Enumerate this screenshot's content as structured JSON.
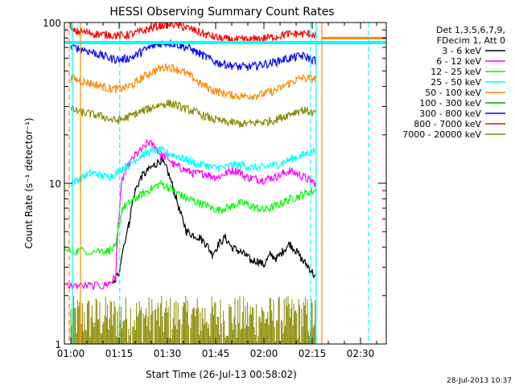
{
  "chart_data": {
    "type": "line",
    "title": "HESSI Observing Summary Count Rates",
    "xlabel": "Start Time (26-Jul-13 00:58:02)",
    "ylabel": "Count Rate (s⁻¹ detector⁻¹)",
    "ylog": true,
    "ylim": [
      1,
      100
    ],
    "xlim_minutes": [
      58,
      158
    ],
    "x_ticks": [
      {
        "m": 60,
        "label": "01:00"
      },
      {
        "m": 75,
        "label": "01:15"
      },
      {
        "m": 90,
        "label": "01:30"
      },
      {
        "m": 105,
        "label": "01:45"
      },
      {
        "m": 120,
        "label": "02:00"
      },
      {
        "m": 135,
        "label": "02:15"
      },
      {
        "m": 150,
        "label": "02:30"
      }
    ],
    "y_ticks": [
      {
        "v": 1,
        "label": "1"
      },
      {
        "v": 10,
        "label": "10"
      },
      {
        "v": 100,
        "label": "100"
      }
    ],
    "legend_header": [
      "Det 1,3,5,6,7,9,",
      "FDecim 1, Att 0"
    ],
    "series": [
      {
        "name": "3 - 6 keV",
        "color": "#000000",
        "x": [
          73,
          75,
          78,
          80,
          82,
          84,
          86,
          88,
          90,
          92,
          94,
          96,
          98,
          100,
          102,
          104,
          106,
          108,
          110,
          112,
          114,
          116,
          118,
          120,
          122,
          124,
          126,
          128,
          130,
          132,
          134,
          136
        ],
        "y": [
          2.3,
          2.8,
          5.5,
          9,
          11,
          12,
          13,
          14,
          12,
          9,
          6.5,
          5,
          4.8,
          4.6,
          4.2,
          3.6,
          4.2,
          4.6,
          4,
          3.8,
          3.6,
          3.3,
          3.3,
          3.1,
          3.6,
          3.4,
          3.8,
          4.2,
          3.8,
          3.3,
          3.0,
          2.6
        ]
      },
      {
        "name": "6 - 12 keV",
        "color": "#ff00ff",
        "x": [
          58,
          62,
          66,
          70,
          72,
          74,
          76,
          78,
          80,
          82,
          84,
          86,
          88,
          90,
          92,
          94,
          96,
          98,
          100,
          102,
          104,
          106,
          108,
          110,
          112,
          114,
          116,
          118,
          120,
          122,
          124,
          126,
          128,
          130,
          132,
          134,
          136
        ],
        "y": [
          2.3,
          2.3,
          2.3,
          2.3,
          2.4,
          2.6,
          10.5,
          13,
          15,
          16,
          18,
          17,
          15,
          14.5,
          13,
          12.5,
          12,
          11.5,
          11.5,
          11.5,
          11,
          11,
          11.5,
          12,
          12,
          11,
          10.8,
          10.6,
          10.5,
          10.8,
          11,
          11.5,
          12,
          11.5,
          11,
          10.5,
          10
        ]
      },
      {
        "name": "12 - 25 keV",
        "color": "#00ff00",
        "x": [
          58,
          62,
          66,
          70,
          72,
          74,
          76,
          78,
          80,
          82,
          84,
          86,
          88,
          90,
          92,
          94,
          96,
          98,
          100,
          102,
          104,
          106,
          108,
          110,
          112,
          114,
          116,
          118,
          120,
          122,
          124,
          126,
          128,
          130,
          132,
          134,
          136
        ],
        "y": [
          3.8,
          3.8,
          3.8,
          3.8,
          3.8,
          4.0,
          7,
          7.5,
          8,
          8.5,
          9,
          9.5,
          10,
          9.5,
          9,
          8.5,
          8,
          7.8,
          7.5,
          7.3,
          7,
          6.8,
          7,
          7.2,
          7.5,
          7.5,
          7.2,
          7,
          6.8,
          7,
          7.3,
          7.6,
          8,
          8.2,
          8.5,
          8.8,
          9
        ]
      },
      {
        "name": "25 - 50 keV",
        "color": "#00ffff",
        "x": [
          60,
          62,
          64,
          66,
          68,
          70,
          72,
          74,
          76,
          78,
          80,
          82,
          84,
          86,
          88,
          90,
          92,
          94,
          96,
          98,
          100,
          102,
          104,
          106,
          108,
          110,
          112,
          114,
          116,
          118,
          120,
          122,
          124,
          126,
          128,
          130,
          132,
          134,
          136
        ],
        "y": [
          10,
          10.5,
          11,
          11.5,
          11.5,
          11,
          11,
          11.5,
          12.5,
          13,
          14,
          15,
          15.5,
          16,
          16,
          15.5,
          15,
          14.5,
          14,
          13.5,
          13,
          13,
          12.5,
          12.5,
          12.5,
          13,
          13,
          13,
          12.5,
          12.5,
          12.5,
          13,
          13,
          13.5,
          14,
          14.5,
          15,
          15.5,
          16
        ]
      },
      {
        "name": "50 - 100 keV",
        "color": "#ff8800",
        "x": [
          60,
          62,
          64,
          66,
          68,
          70,
          72,
          74,
          76,
          78,
          80,
          82,
          84,
          86,
          88,
          90,
          92,
          94,
          96,
          98,
          100,
          102,
          104,
          106,
          108,
          110,
          112,
          114,
          116,
          118,
          120,
          122,
          124,
          126,
          128,
          130,
          132,
          134,
          136
        ],
        "y": [
          45,
          44,
          43,
          42,
          41,
          40,
          39,
          38.5,
          39,
          40,
          42,
          45,
          48,
          50,
          52,
          53,
          52,
          50,
          48,
          45,
          42,
          40,
          38,
          37,
          36,
          35.5,
          35,
          35,
          35,
          35.5,
          36,
          37,
          38,
          40,
          42,
          44,
          45,
          45,
          45
        ]
      },
      {
        "name": "100 - 300 keV",
        "color": "#00aa00",
        "x": [],
        "y": []
      },
      {
        "name": "300 - 800 keV",
        "color": "#0000ff",
        "x": [
          60,
          62,
          64,
          66,
          68,
          70,
          72,
          74,
          76,
          78,
          80,
          82,
          84,
          86,
          88,
          90,
          92,
          94,
          96,
          98,
          100,
          102,
          104,
          106,
          108,
          110,
          112,
          114,
          116,
          118,
          120,
          122,
          124,
          126,
          128,
          130,
          132,
          134,
          136
        ],
        "y": [
          70,
          69,
          68,
          66,
          64,
          62,
          60,
          59,
          59,
          60,
          62,
          66,
          69,
          72,
          74,
          75,
          74,
          72,
          70,
          67,
          64,
          61,
          58,
          56,
          55,
          54,
          53,
          53,
          53,
          54,
          55,
          56,
          57,
          59,
          60,
          61,
          62,
          60,
          58
        ]
      },
      {
        "name": "800 - 7000 keV",
        "color": "#ff0000",
        "x": [
          60,
          62,
          64,
          66,
          68,
          70,
          72,
          74,
          76,
          78,
          80,
          82,
          84,
          86,
          88,
          90,
          92,
          94,
          96,
          98,
          100,
          102,
          104,
          106,
          108,
          110,
          112,
          114,
          116,
          118,
          120,
          122,
          124,
          126,
          128,
          130,
          132,
          134,
          136
        ],
        "y": [
          88,
          88,
          87,
          86,
          85,
          84,
          84,
          83,
          83,
          84,
          86,
          88,
          91,
          94,
          96,
          98,
          97,
          95,
          93,
          90,
          87,
          84,
          82,
          80,
          79,
          78,
          78,
          78,
          78,
          79,
          80,
          81,
          82,
          84,
          85,
          85,
          85,
          85,
          84
        ]
      },
      {
        "name": "7000 - 20000 keV",
        "color": "#888800",
        "x": [
          60,
          62,
          64,
          66,
          68,
          70,
          72,
          74,
          76,
          78,
          80,
          82,
          84,
          86,
          88,
          90,
          92,
          94,
          96,
          98,
          100,
          102,
          104,
          106,
          108,
          110,
          112,
          114,
          116,
          118,
          120,
          122,
          124,
          126,
          128,
          130,
          132,
          134,
          136
        ],
        "y": [
          29,
          28,
          27.5,
          27,
          26.5,
          26,
          25,
          24.5,
          25,
          26,
          27,
          28,
          29,
          30,
          31,
          31.5,
          31,
          30,
          29,
          28,
          27,
          26,
          25,
          24.5,
          24,
          24,
          23.5,
          23.5,
          23.5,
          24,
          24,
          24.5,
          25,
          26,
          27,
          28,
          28.5,
          28,
          27
        ]
      }
    ],
    "lower_series_color": "#888800",
    "lower_series_range": [
      1,
      2
    ],
    "plateau": {
      "color": "#00ffff",
      "value": 75,
      "x_start": 58,
      "x_end": 158
    },
    "orange_plateau": {
      "color": "#ff8800",
      "value": 80,
      "x_start": 138,
      "x_end": 158
    },
    "vertical_lines": [
      {
        "m": 59.5,
        "color": "#ff8800",
        "style": "dashed"
      },
      {
        "m": 60.5,
        "color": "#00ffff",
        "style": "solid"
      },
      {
        "m": 63.0,
        "color": "#ff8800",
        "style": "solid"
      },
      {
        "m": 75.2,
        "color": "#00ffff",
        "style": "dashed"
      },
      {
        "m": 134.5,
        "color": "#00ffff",
        "style": "dashed"
      },
      {
        "m": 136.2,
        "color": "#00ffff",
        "style": "solid"
      },
      {
        "m": 138.0,
        "color": "#ff8800",
        "style": "solid"
      },
      {
        "m": 152.5,
        "color": "#00ffff",
        "style": "dashed"
      }
    ],
    "timestamp": "28-Jul-2013 10:37",
    "grid": false,
    "legend_position": "right"
  }
}
